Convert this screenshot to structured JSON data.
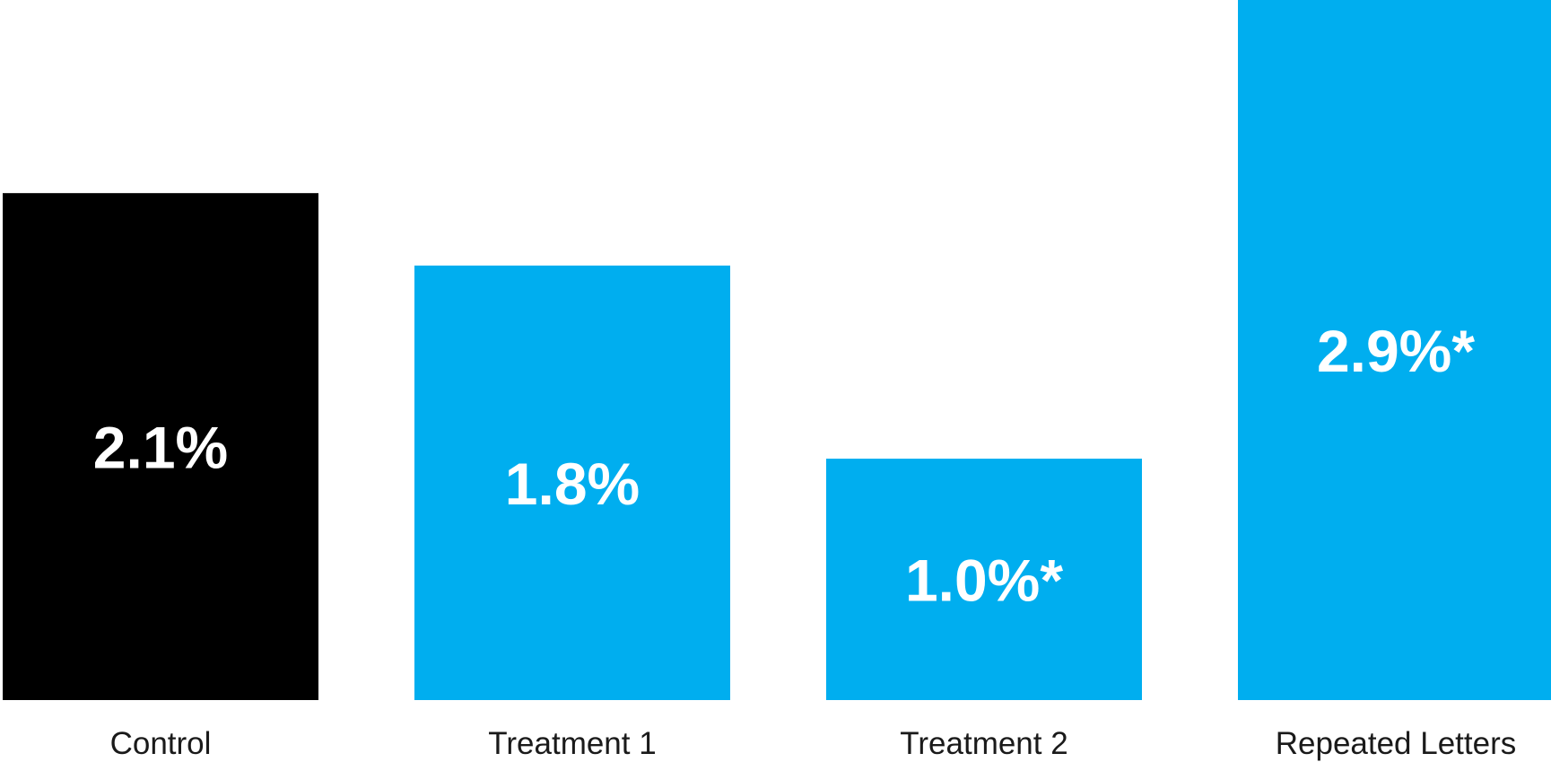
{
  "chart_data": {
    "type": "bar",
    "categories": [
      "Control",
      "Treatment 1",
      "Treatment 2",
      "Repeated Letters"
    ],
    "values": [
      2.1,
      1.8,
      1.0,
      2.9
    ],
    "data_labels": [
      "2.1%",
      "1.8%",
      "1.0%*",
      "2.9%*"
    ],
    "title": "",
    "xlabel": "",
    "ylabel": "",
    "ylim": [
      0,
      2.9
    ],
    "grid": false,
    "legend": "none",
    "colors": [
      "#000000",
      "#00AEEF",
      "#00AEEF",
      "#00AEEF"
    ]
  }
}
